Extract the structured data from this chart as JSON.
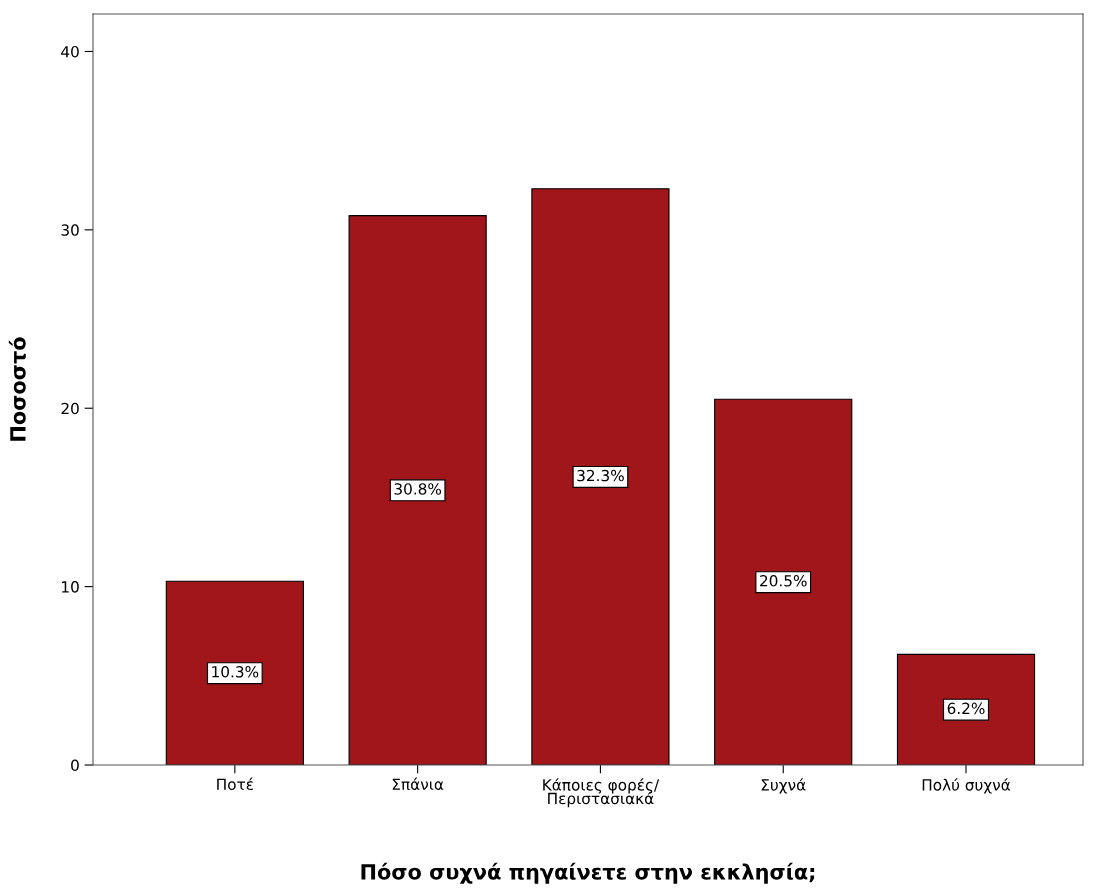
{
  "chart_data": {
    "type": "bar",
    "categories": [
      "Ποτέ",
      "Σπάνια",
      "Κάποιες φορές/\nΠεριστασιακά",
      "Συχνά",
      "Πολύ συχνά"
    ],
    "values": [
      10.3,
      30.8,
      32.3,
      20.5,
      6.2
    ],
    "value_labels": [
      "10.3%",
      "30.8%",
      "32.3%",
      "20.5%",
      "6.2%"
    ],
    "color": "#a0161a",
    "xlabel": "Πόσο συχνά πηγαίνετε στην εκκλησία;",
    "ylabel": "Ποσοστό",
    "ylim": [
      0,
      42.1
    ],
    "yticks": [
      0,
      10,
      20,
      30,
      40
    ],
    "grid": false,
    "legend": false
  }
}
